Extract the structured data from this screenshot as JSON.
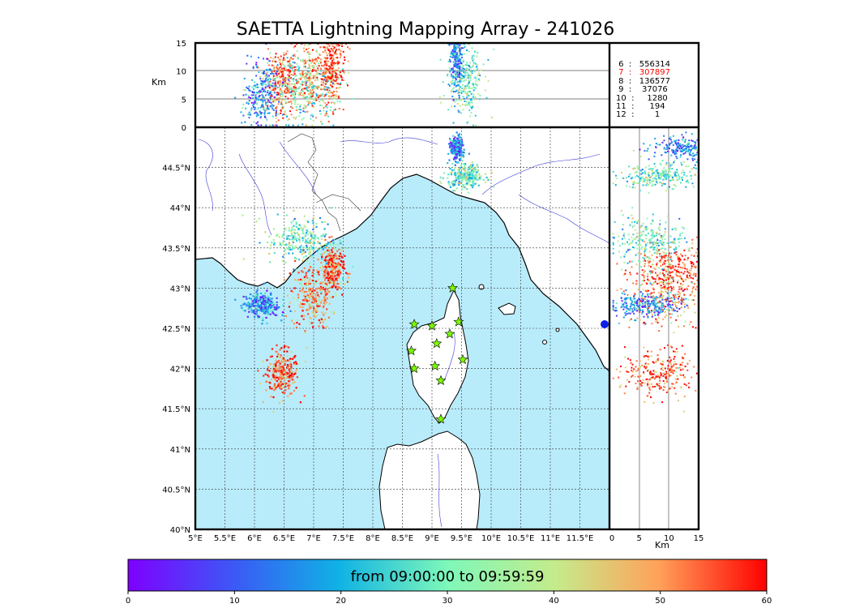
{
  "title": "SAETTA Lightning Mapping Array - 241026",
  "colorbar": {
    "label": "from 09:00:00 to 09:59:59",
    "min": 0,
    "max": 60,
    "ticks": [
      "0",
      "10",
      "20",
      "30",
      "40",
      "50",
      "60"
    ]
  },
  "alt_axis_label": "Km",
  "stats": [
    {
      "n": "6",
      "count": "556314",
      "highlight": false
    },
    {
      "n": "7",
      "count": "307897",
      "highlight": true
    },
    {
      "n": "8",
      "count": "136577",
      "highlight": false
    },
    {
      "n": "9",
      "count": "37076",
      "highlight": false
    },
    {
      "n": "10",
      "count": "1280",
      "highlight": false
    },
    {
      "n": "11",
      "count": "194",
      "highlight": false
    },
    {
      "n": "12",
      "count": "1",
      "highlight": false
    }
  ],
  "colors": {
    "sea": "#b9ecfb",
    "highlight": "#ff0000",
    "station": "#7cfc00",
    "rivers": "#3b3bd6"
  },
  "chart_data": {
    "type": "scatter",
    "title": "SAETTA Lightning Mapping Array - 241026",
    "map": {
      "xlabel": "",
      "ylabel": "",
      "xlim": [
        5,
        12
      ],
      "ylim": [
        40,
        45
      ],
      "xticks": [
        "5°E",
        "5.5°E",
        "6°E",
        "6.5°E",
        "7°E",
        "7.5°E",
        "8°E",
        "8.5°E",
        "9°E",
        "9.5°E",
        "10°E",
        "10.5°E",
        "11°E",
        "11.5°E"
      ],
      "yticks": [
        "40°N",
        "40.5°N",
        "41°N",
        "41.5°N",
        "42°N",
        "42.5°N",
        "43°N",
        "43.5°N",
        "44°N",
        "44.5°N"
      ],
      "grid": true
    },
    "alt_top": {
      "ylabel": "Km",
      "ylim": [
        0,
        15
      ],
      "yticks": [
        "0",
        "5",
        "10",
        "15"
      ]
    },
    "alt_right": {
      "xlabel": "Km",
      "xlim": [
        0,
        15
      ],
      "xticks": [
        "0",
        "5",
        "10",
        "15"
      ]
    },
    "lightning_clusters": [
      {
        "lon": 6.45,
        "lat": 41.95,
        "lon_spread": 0.28,
        "lat_spread": 0.28,
        "time_min": 55,
        "alt_km": 8
      },
      {
        "lon": 6.95,
        "lat": 42.9,
        "lon_spread": 0.35,
        "lat_spread": 0.4,
        "time_min": 50,
        "alt_km": 9
      },
      {
        "lon": 7.3,
        "lat": 43.25,
        "lon_spread": 0.2,
        "lat_spread": 0.3,
        "time_min": 55,
        "alt_km": 10
      },
      {
        "lon": 6.8,
        "lat": 43.6,
        "lon_spread": 0.6,
        "lat_spread": 0.3,
        "time_min": 30,
        "alt_km": 7
      },
      {
        "lon": 6.1,
        "lat": 42.8,
        "lon_spread": 0.3,
        "lat_spread": 0.15,
        "time_min": 15,
        "alt_km": 6
      },
      {
        "lon": 9.55,
        "lat": 44.4,
        "lon_spread": 0.3,
        "lat_spread": 0.15,
        "time_min": 30,
        "alt_km": 8
      },
      {
        "lon": 9.4,
        "lat": 44.75,
        "lon_spread": 0.1,
        "lat_spread": 0.15,
        "time_min": 15,
        "alt_km": 13
      }
    ],
    "stations": [
      {
        "lon": 9.35,
        "lat": 43.0
      },
      {
        "lon": 8.7,
        "lat": 42.55
      },
      {
        "lon": 9.0,
        "lat": 42.53
      },
      {
        "lon": 9.45,
        "lat": 42.58
      },
      {
        "lon": 9.3,
        "lat": 42.43
      },
      {
        "lon": 9.08,
        "lat": 42.31
      },
      {
        "lon": 8.65,
        "lat": 42.22
      },
      {
        "lon": 9.52,
        "lat": 42.11
      },
      {
        "lon": 8.7,
        "lat": 42.0
      },
      {
        "lon": 9.05,
        "lat": 42.03
      },
      {
        "lon": 9.15,
        "lat": 41.85
      },
      {
        "lon": 9.15,
        "lat": 41.37
      }
    ]
  }
}
